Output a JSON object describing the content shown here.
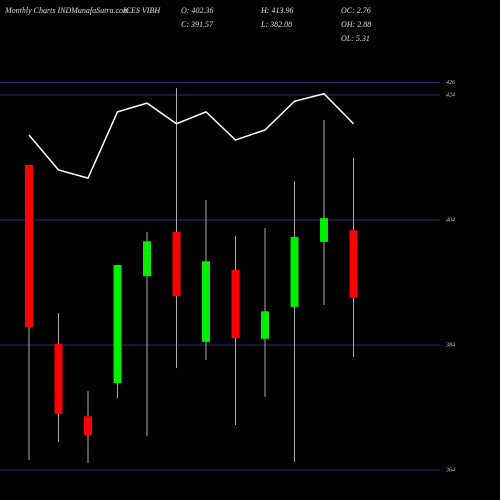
{
  "chart_data": {
    "type": "candlestick",
    "title": "Monthly Charts INDMunafaSutra.com",
    "subtitle": "ICES VIBH",
    "stats": [
      {
        "label": "O: 402.36",
        "col": 0,
        "row": 0
      },
      {
        "label": "H: 413.96",
        "col": 1,
        "row": 0
      },
      {
        "label": "OC: 2.76",
        "col": 2,
        "row": 0
      },
      {
        "label": "C: 391.57",
        "col": 0,
        "row": 1
      },
      {
        "label": "L: 382.08",
        "col": 1,
        "row": 1
      },
      {
        "label": "OH: 2.88",
        "col": 2,
        "row": 1
      },
      {
        "label": "OL: 5.31",
        "col": 2,
        "row": 2
      }
    ],
    "categories": [
      null,
      null,
      null,
      null,
      null,
      null,
      null,
      null,
      null,
      null,
      null,
      null
    ],
    "open": [
      412.8,
      384.2,
      372.6,
      377.9,
      395.0,
      402.1,
      384.5,
      396.0,
      385.0,
      390.1,
      400.5,
      402.36
    ],
    "high": [
      412.8,
      389.1,
      376.6,
      396.8,
      402.1,
      425.1,
      407.2,
      401.4,
      402.7,
      410.2,
      420.0,
      413.96
    ],
    "low": [
      365.6,
      368.5,
      365.1,
      375.5,
      369.4,
      380.3,
      381.6,
      371.2,
      375.7,
      365.3,
      390.4,
      382.08
    ],
    "close": [
      386.9,
      373.0,
      369.6,
      396.8,
      400.6,
      391.8,
      397.4,
      385.1,
      389.4,
      401.3,
      404.3,
      391.57
    ],
    "up_color": "#00ee00",
    "down_color": "#ff0000",
    "line": {
      "color": "#ffffff",
      "values": [
        417.6,
        412.0,
        410.7,
        421.3,
        422.7,
        419.4,
        421.3,
        416.8,
        418.4,
        423.0,
        424.2,
        419.4
      ]
    },
    "ylim": [
      359.2,
      439.2
    ],
    "yticks": [
      364,
      384,
      404,
      424,
      426
    ],
    "grid": true
  }
}
